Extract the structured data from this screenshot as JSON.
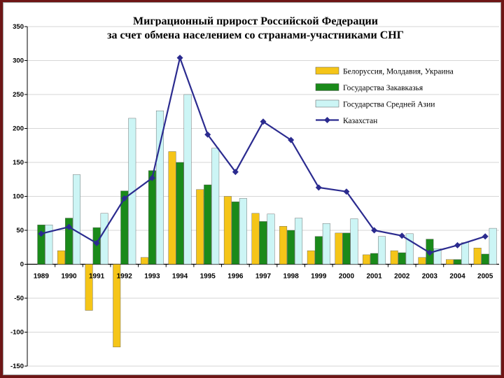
{
  "chart_data": {
    "type": "bar",
    "title": "Миграционный прирост Российской Федерации",
    "subtitle": "за счет обмена населением со странами-участниками СНГ",
    "xlabel": "",
    "ylabel": "",
    "ylim": [
      -150,
      350
    ],
    "yticks": [
      350,
      300,
      250,
      200,
      150,
      100,
      50,
      0,
      -50,
      -100,
      -150
    ],
    "grid": true,
    "legend_position": "top-right",
    "categories": [
      "1989",
      "1990",
      "1991",
      "1992",
      "1993",
      "1994",
      "1995",
      "1996",
      "1997",
      "1998",
      "1999",
      "2000",
      "2001",
      "2002",
      "2003",
      "2004",
      "2005"
    ],
    "series": [
      {
        "name": "Белоруссия, Молдавия, Украина",
        "kind": "bar",
        "color": "#f5c518",
        "values": [
          0,
          20,
          -68,
          -122,
          10,
          166,
          110,
          100,
          75,
          56,
          20,
          46,
          14,
          20,
          10,
          7,
          24
        ]
      },
      {
        "name": "Государства Закавказья",
        "kind": "bar",
        "color": "#1a8a1a",
        "values": [
          58,
          68,
          54,
          108,
          138,
          150,
          117,
          92,
          63,
          50,
          41,
          46,
          16,
          17,
          37,
          7,
          15
        ]
      },
      {
        "name": "Государства Средней Азии",
        "kind": "bar",
        "color": "#ccf5f5",
        "values": [
          58,
          132,
          75,
          215,
          226,
          250,
          171,
          97,
          74,
          68,
          60,
          67,
          41,
          45,
          23,
          32,
          53
        ]
      },
      {
        "name": "Казахстан",
        "kind": "line",
        "color": "#2b2b8f",
        "values": [
          45,
          55,
          31,
          97,
          127,
          304,
          191,
          136,
          210,
          183,
          113,
          107,
          50,
          42,
          17,
          28,
          41
        ]
      }
    ]
  }
}
